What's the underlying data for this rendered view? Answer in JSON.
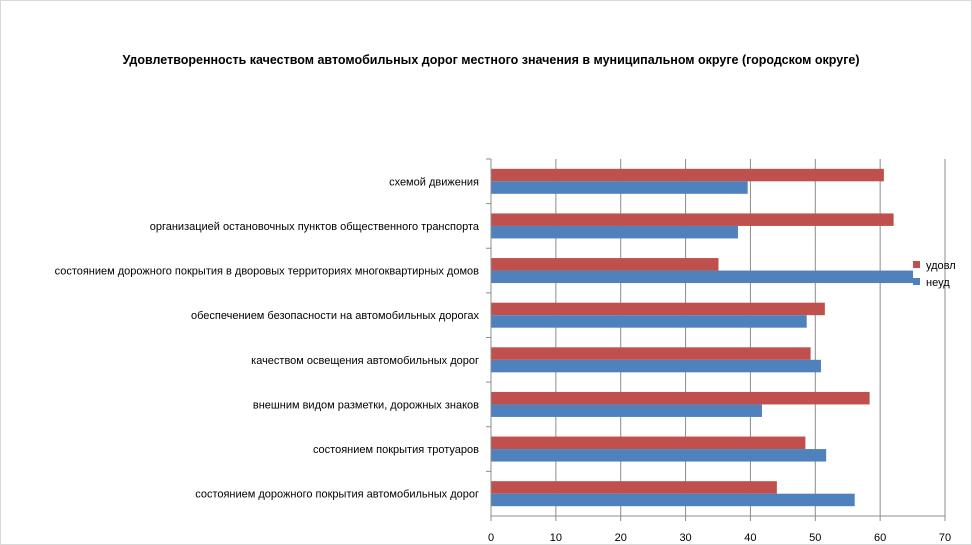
{
  "chart_data": {
    "type": "bar",
    "orientation": "horizontal",
    "title": "Удовлетворенность качеством автомобильных дорог местного значения в муниципальном округе (городском округе)",
    "xlabel": "",
    "ylabel": "",
    "xlim": [
      0,
      70
    ],
    "xticks": [
      0,
      10,
      20,
      30,
      40,
      50,
      60,
      70
    ],
    "grid": true,
    "legend_position": "right",
    "categories": [
      "схемой движения",
      "организацией остановочных пунктов общественного транспорта",
      "состоянием дорожного покрытия в дворовых территориях многоквартирных домов",
      "обеспечением безопасности на автомобильных дорогах",
      "качеством освещения автомобильных дорог",
      "внешним видом разметки, дорожных знаков",
      "состоянием покрытия тротуаров",
      "состоянием дорожного покрытия автомобильных дорог"
    ],
    "series": [
      {
        "name": "удовл",
        "color": "#c0504d",
        "values": [
          60.5,
          62,
          35,
          51.4,
          49.2,
          58.3,
          48.4,
          44
        ]
      },
      {
        "name": "неуд",
        "color": "#4f81bd",
        "values": [
          39.5,
          38,
          65,
          48.6,
          50.8,
          41.7,
          51.6,
          56
        ]
      }
    ]
  }
}
